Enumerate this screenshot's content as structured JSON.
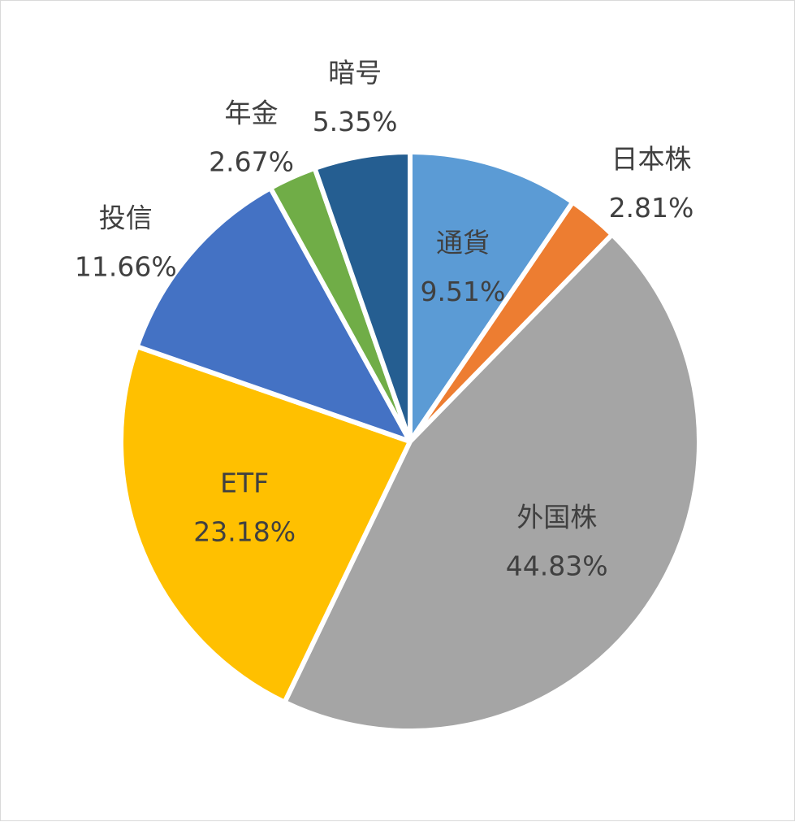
{
  "chart_data": {
    "type": "pie",
    "title": "",
    "start_angle_deg": 0,
    "direction": "clockwise",
    "slices": [
      {
        "label": "通貨",
        "value": 9.51,
        "percent_label": "9.51%",
        "color": "#5b9bd5",
        "label_inside": true
      },
      {
        "label": "日本株",
        "value": 2.81,
        "percent_label": "2.81%",
        "color": "#ed7d31",
        "label_inside": false
      },
      {
        "label": "外国株",
        "value": 44.83,
        "percent_label": "44.83%",
        "color": "#a5a5a5",
        "label_inside": true
      },
      {
        "label": "ETF",
        "value": 23.18,
        "percent_label": "23.18%",
        "color": "#ffc000",
        "label_inside": true
      },
      {
        "label": "投信",
        "value": 11.66,
        "percent_label": "11.66%",
        "color": "#4472c4",
        "label_inside": false
      },
      {
        "label": "年金",
        "value": 2.67,
        "percent_label": "2.67%",
        "color": "#70ad47",
        "label_inside": false
      },
      {
        "label": "暗号",
        "value": 5.35,
        "percent_label": "5.35%",
        "color": "#255e91",
        "label_inside": false
      }
    ],
    "legend": "none",
    "data_labels": "category and percentage"
  }
}
